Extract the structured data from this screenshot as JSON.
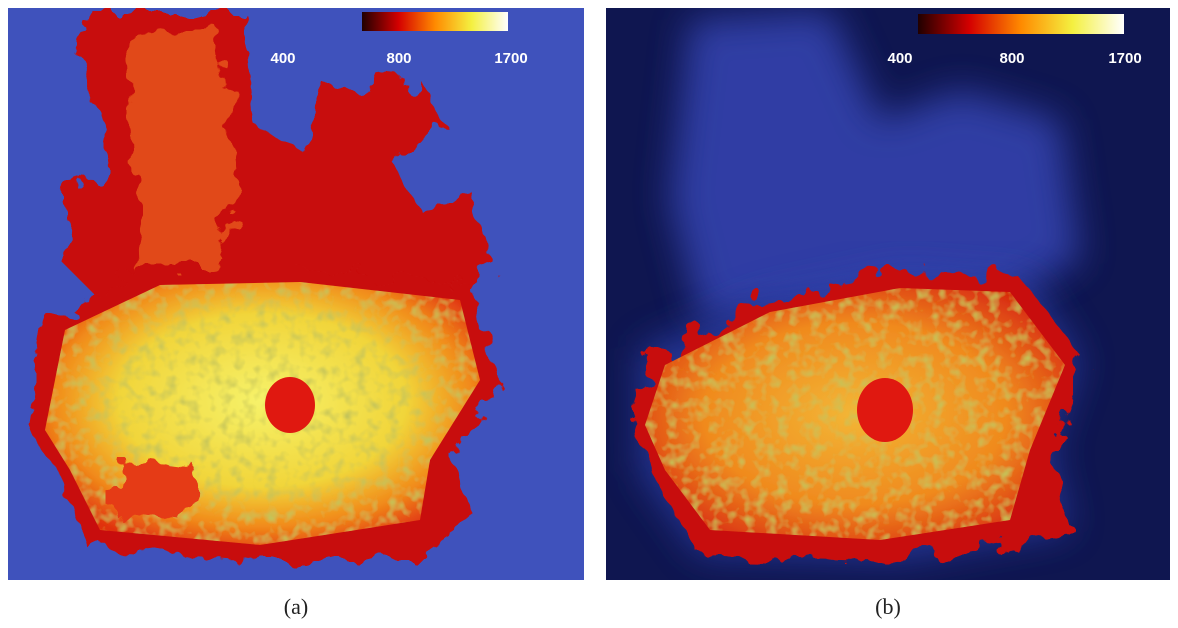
{
  "panels": [
    {
      "caption": "(a)",
      "colorbar_ticks": [
        400,
        800,
        1700
      ]
    },
    {
      "caption": "(b)",
      "colorbar_ticks": [
        400,
        800,
        1700
      ]
    }
  ]
}
